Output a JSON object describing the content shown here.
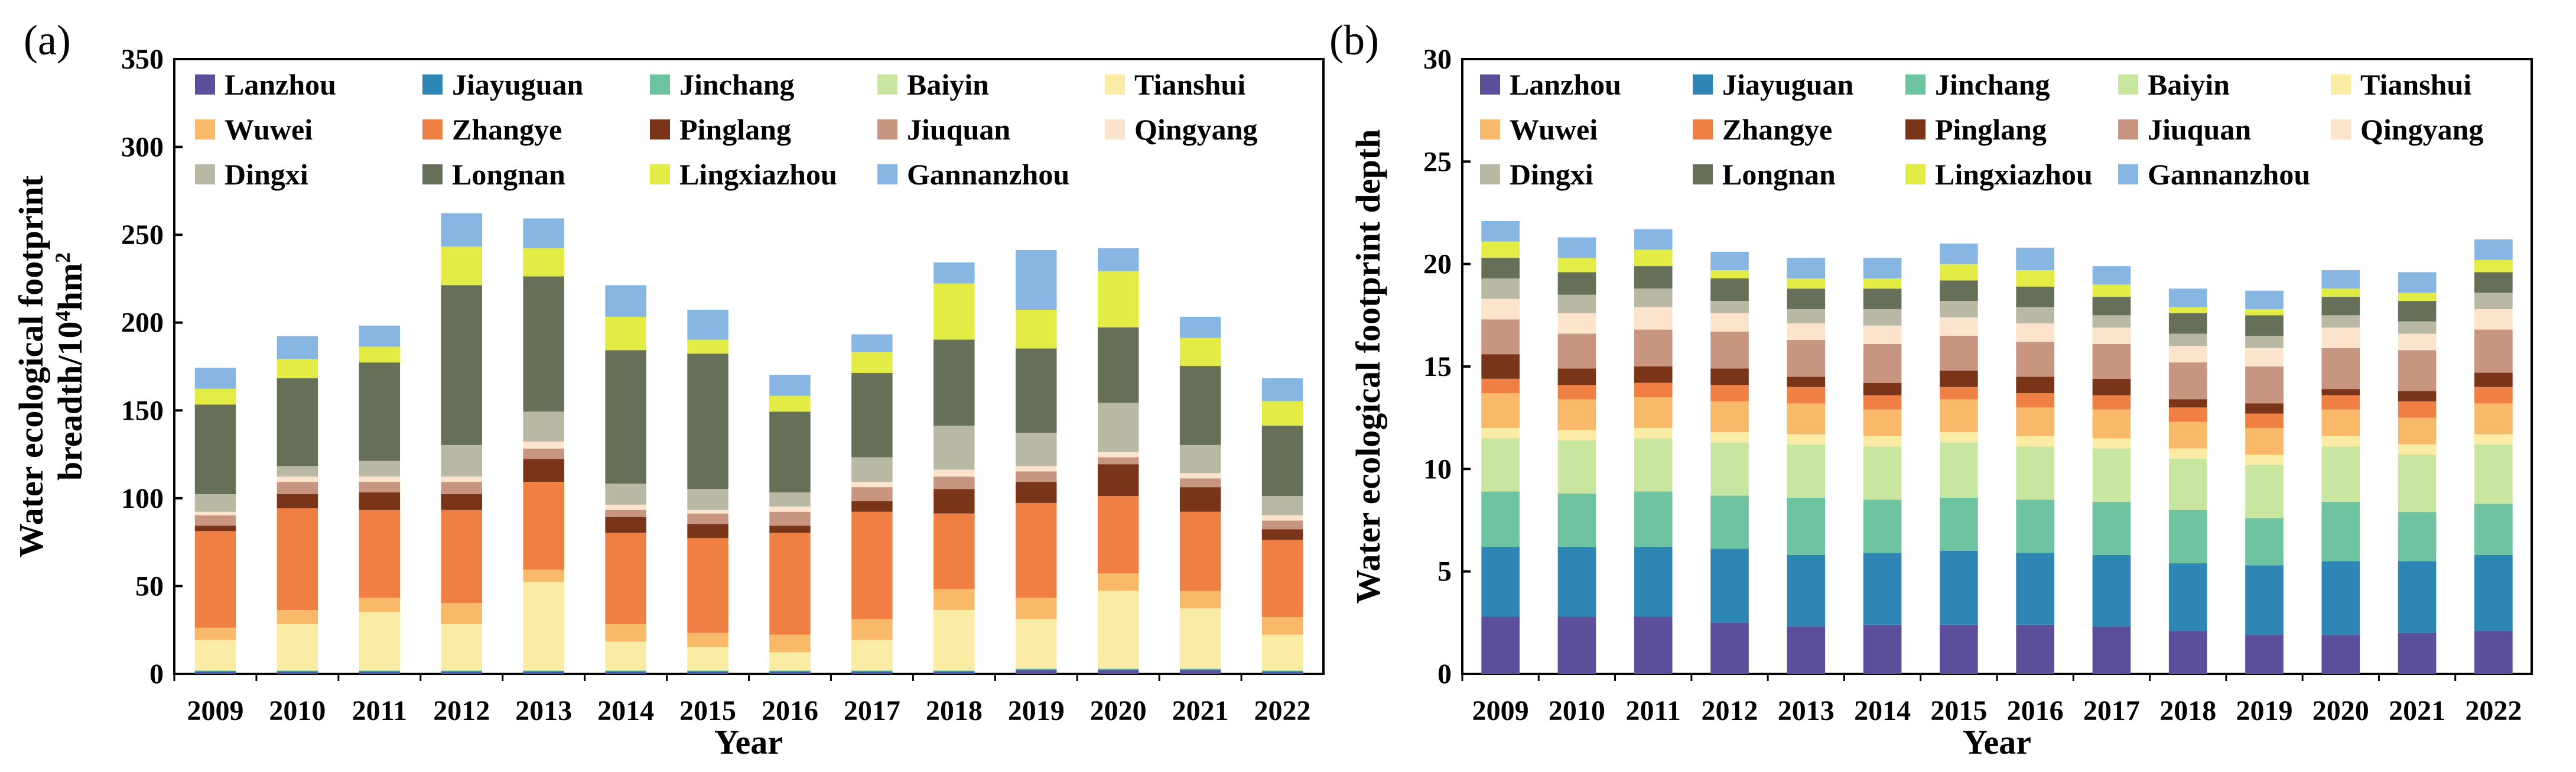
{
  "series_colors": {
    "Lanzhou": "#5b4e9b",
    "Jiayuguan": "#2e86b5",
    "Jinchang": "#6ec4a0",
    "Baiyin": "#c9e6a0",
    "Tianshui": "#faeba5",
    "Wuwei": "#f8b969",
    "Zhangye": "#f07f43",
    "Pinglang": "#7a3418",
    "Jiuquan": "#c89580",
    "Qingyang": "#fbe3cc",
    "Dingxi": "#b8b8a4",
    "Longnan": "#666f58",
    "Lingxiazhou": "#e2ec44",
    "Gannanzhou": "#88b6e2"
  },
  "chart_data": [
    {
      "panel": "(a)",
      "type": "bar",
      "stacked": true,
      "title": "",
      "xlabel": "Year",
      "ylabel_line1": "Water ecological footprint",
      "ylabel_line2_prefix": "breadth/10",
      "ylabel_sup1": "4",
      "ylabel_mid": "hm",
      "ylabel_sup2": "2",
      "ylim": [
        0,
        350
      ],
      "yticks": [
        "0",
        "50",
        "100",
        "150",
        "200",
        "250",
        "300",
        "350"
      ],
      "categories": [
        "2009",
        "2010",
        "2011",
        "2012",
        "2013",
        "2014",
        "2015",
        "2016",
        "2017",
        "2018",
        "2019",
        "2020",
        "2021",
        "2022"
      ],
      "legend_rows": [
        [
          "Lanzhou",
          "Jiayuguan",
          "Jinchang",
          "Baiyin",
          "Tianshui"
        ],
        [
          "Wuwei",
          "Zhangye",
          "Pinglang",
          "Jiuquan",
          "Qingyang"
        ],
        [
          "Dingxi",
          "Longnan",
          "Lingxiazhou",
          "Gannanzhou"
        ]
      ],
      "series": [
        {
          "name": "Lanzhou",
          "values": [
            1,
            1,
            1,
            1,
            1,
            1,
            1,
            1,
            1,
            1,
            2,
            2,
            2,
            1
          ]
        },
        {
          "name": "Jiayuguan",
          "values": [
            0.5,
            0.5,
            0.5,
            0.5,
            0.5,
            0.5,
            0.5,
            0.5,
            0.5,
            0.5,
            0.5,
            0.5,
            0.5,
            0.5
          ]
        },
        {
          "name": "Jinchang",
          "values": [
            0.3,
            0.3,
            0.3,
            0.3,
            0.3,
            0.3,
            0.3,
            0.3,
            0.3,
            0.3,
            0.3,
            0.3,
            0.3,
            0.3
          ]
        },
        {
          "name": "Baiyin",
          "values": [
            0.5,
            0.5,
            0.5,
            0.5,
            0.5,
            0.5,
            0.5,
            0.5,
            0.5,
            0.5,
            0.5,
            0.5,
            0.5,
            0.5
          ]
        },
        {
          "name": "Tianshui",
          "values": [
            17,
            26,
            33,
            26,
            50,
            16,
            13,
            10,
            17,
            34,
            28,
            44,
            34,
            20
          ]
        },
        {
          "name": "Wuwei",
          "values": [
            7,
            8,
            8,
            12,
            7,
            10,
            8,
            10,
            12,
            12,
            12,
            10,
            10,
            10
          ]
        },
        {
          "name": "Zhangye",
          "values": [
            55,
            58,
            50,
            53,
            50,
            52,
            54,
            58,
            61,
            43,
            54,
            44,
            45,
            44
          ]
        },
        {
          "name": "Pinglang",
          "values": [
            3,
            8,
            10,
            9,
            13,
            9,
            8,
            4,
            6,
            14,
            12,
            18,
            14,
            6
          ]
        },
        {
          "name": "Jiuquan",
          "values": [
            6,
            7,
            6,
            7,
            6,
            4,
            6,
            8,
            8,
            7,
            6,
            4,
            5,
            5
          ]
        },
        {
          "name": "Qingyang",
          "values": [
            2,
            3,
            3,
            3,
            4,
            3,
            2,
            3,
            3,
            4,
            3,
            3,
            3,
            3
          ]
        },
        {
          "name": "Dingxi",
          "values": [
            10,
            6,
            9,
            18,
            17,
            12,
            12,
            8,
            14,
            25,
            19,
            28,
            16,
            11
          ]
        },
        {
          "name": "Longnan",
          "values": [
            51,
            50,
            56,
            91,
            77,
            76,
            77,
            46,
            48,
            49,
            48,
            43,
            45,
            40
          ]
        },
        {
          "name": "Lingxiazhou",
          "values": [
            9,
            11,
            9,
            22,
            16,
            19,
            8,
            9,
            12,
            32,
            22,
            32,
            16,
            14
          ]
        },
        {
          "name": "Gannanzhou",
          "values": [
            12,
            13,
            12,
            19,
            17,
            18,
            17,
            12,
            10,
            12,
            34,
            13,
            12,
            13
          ]
        }
      ]
    },
    {
      "panel": "(b)",
      "type": "bar",
      "stacked": true,
      "title": "",
      "xlabel": "Year",
      "ylabel": "Water ecological footprint depth",
      "ylim": [
        0,
        30
      ],
      "yticks": [
        "0",
        "5",
        "10",
        "15",
        "20",
        "25",
        "30"
      ],
      "categories": [
        "2009",
        "2010",
        "2011",
        "2012",
        "2013",
        "2014",
        "2015",
        "2016",
        "2017",
        "2018",
        "2019",
        "2020",
        "2021",
        "2022"
      ],
      "legend_rows": [
        [
          "Lanzhou",
          "Jiayuguan",
          "Jinchang",
          "Baiyin",
          "Tianshui"
        ],
        [
          "Wuwei",
          "Zhangye",
          "Pinglang",
          "Jiuquan",
          "Qingyang"
        ],
        [
          "Dingxi",
          "Longnan",
          "Lingxiazhou",
          "Gannanzhou"
        ]
      ],
      "series": [
        {
          "name": "Lanzhou",
          "values": [
            2.8,
            2.8,
            2.8,
            2.5,
            2.3,
            2.4,
            2.4,
            2.4,
            2.3,
            2.1,
            1.9,
            1.9,
            2.0,
            2.1
          ]
        },
        {
          "name": "Jiayuguan",
          "values": [
            3.4,
            3.4,
            3.4,
            3.6,
            3.5,
            3.5,
            3.6,
            3.5,
            3.5,
            3.3,
            3.4,
            3.6,
            3.5,
            3.7
          ]
        },
        {
          "name": "Jinchang",
          "values": [
            2.7,
            2.6,
            2.7,
            2.6,
            2.8,
            2.6,
            2.6,
            2.6,
            2.6,
            2.6,
            2.3,
            2.9,
            2.4,
            2.5
          ]
        },
        {
          "name": "Baiyin",
          "values": [
            2.6,
            2.6,
            2.6,
            2.6,
            2.6,
            2.6,
            2.7,
            2.6,
            2.6,
            2.5,
            2.6,
            2.7,
            2.8,
            2.9
          ]
        },
        {
          "name": "Tianshui",
          "values": [
            0.5,
            0.5,
            0.5,
            0.5,
            0.5,
            0.5,
            0.5,
            0.5,
            0.5,
            0.5,
            0.5,
            0.5,
            0.5,
            0.5
          ]
        },
        {
          "name": "Wuwei",
          "values": [
            1.7,
            1.5,
            1.5,
            1.5,
            1.5,
            1.3,
            1.6,
            1.4,
            1.4,
            1.3,
            1.3,
            1.3,
            1.3,
            1.5
          ]
        },
        {
          "name": "Zhangye",
          "values": [
            0.7,
            0.7,
            0.7,
            0.8,
            0.8,
            0.7,
            0.6,
            0.7,
            0.7,
            0.7,
            0.7,
            0.7,
            0.8,
            0.8
          ]
        },
        {
          "name": "Pinglang",
          "values": [
            1.2,
            0.8,
            0.8,
            0.8,
            0.5,
            0.6,
            0.8,
            0.8,
            0.8,
            0.4,
            0.5,
            0.3,
            0.5,
            0.7
          ]
        },
        {
          "name": "Jiuquan",
          "values": [
            1.7,
            1.7,
            1.8,
            1.8,
            1.8,
            1.9,
            1.7,
            1.7,
            1.7,
            1.8,
            1.8,
            2.0,
            2.0,
            2.1
          ]
        },
        {
          "name": "Qingyang",
          "values": [
            1.0,
            1.0,
            1.1,
            0.9,
            0.8,
            0.9,
            0.9,
            0.9,
            0.8,
            0.8,
            0.9,
            1.0,
            0.8,
            1.0
          ]
        },
        {
          "name": "Dingxi",
          "values": [
            1.0,
            0.9,
            0.9,
            0.6,
            0.7,
            0.8,
            0.8,
            0.8,
            0.6,
            0.6,
            0.6,
            0.6,
            0.6,
            0.8
          ]
        },
        {
          "name": "Longnan",
          "values": [
            1.0,
            1.1,
            1.1,
            1.1,
            1.0,
            1.0,
            1.0,
            1.0,
            0.9,
            1.0,
            1.0,
            0.9,
            1.0,
            1.0
          ]
        },
        {
          "name": "Lingxiazhou",
          "values": [
            0.8,
            0.7,
            0.8,
            0.4,
            0.5,
            0.5,
            0.8,
            0.8,
            0.6,
            0.3,
            0.3,
            0.4,
            0.4,
            0.6
          ]
        },
        {
          "name": "Gannanzhou",
          "values": [
            1.0,
            1.0,
            1.0,
            0.9,
            1.0,
            1.0,
            1.0,
            1.1,
            0.9,
            0.9,
            0.9,
            0.9,
            1.0,
            1.0
          ]
        }
      ]
    }
  ]
}
